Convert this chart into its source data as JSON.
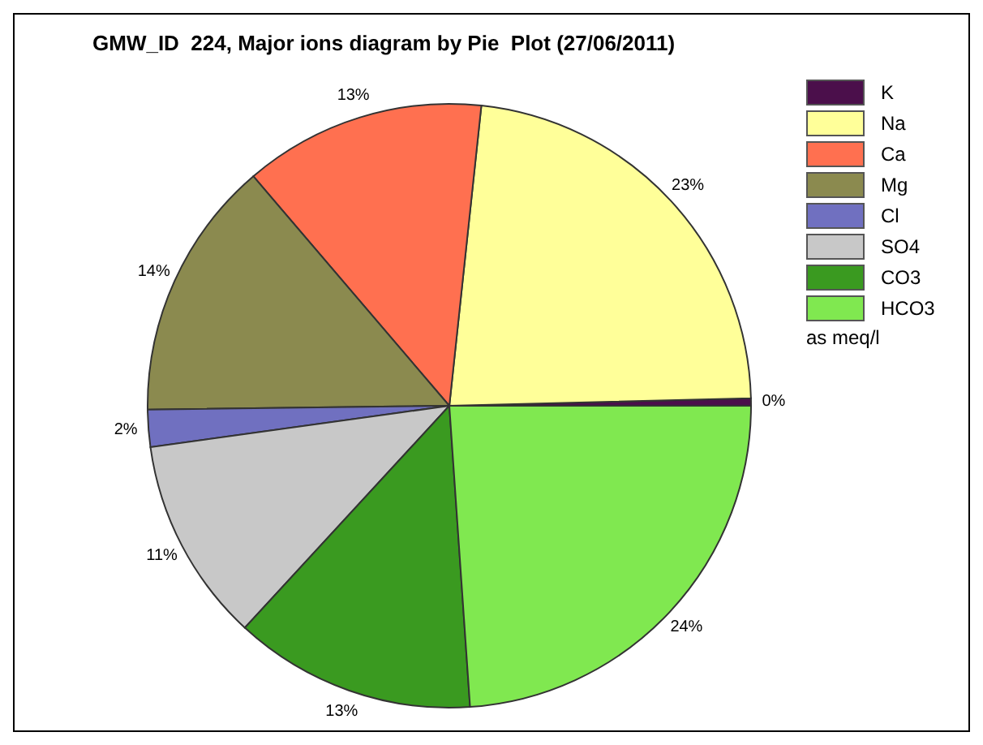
{
  "chart_data": {
    "type": "pie",
    "title": "GMW_ID  224, Major ions diagram by Pie  Plot (27/06/2011)",
    "categories": [
      "K",
      "Na",
      "Ca",
      "Mg",
      "Cl",
      "SO4",
      "CO3",
      "HCO3"
    ],
    "values": [
      0.4,
      23,
      13,
      14,
      2,
      11,
      13,
      24
    ],
    "value_labels": [
      "0%",
      "23%",
      "13%",
      "14%",
      "2%",
      "11%",
      "13%",
      "24%"
    ],
    "colors": [
      "#4b0f4b",
      "#ffff99",
      "#ff7050",
      "#8b8a4f",
      "#7070c0",
      "#c8c8c8",
      "#3a9a20",
      "#80e850"
    ],
    "legend": "right",
    "annotations": [
      "as meq/l"
    ]
  }
}
